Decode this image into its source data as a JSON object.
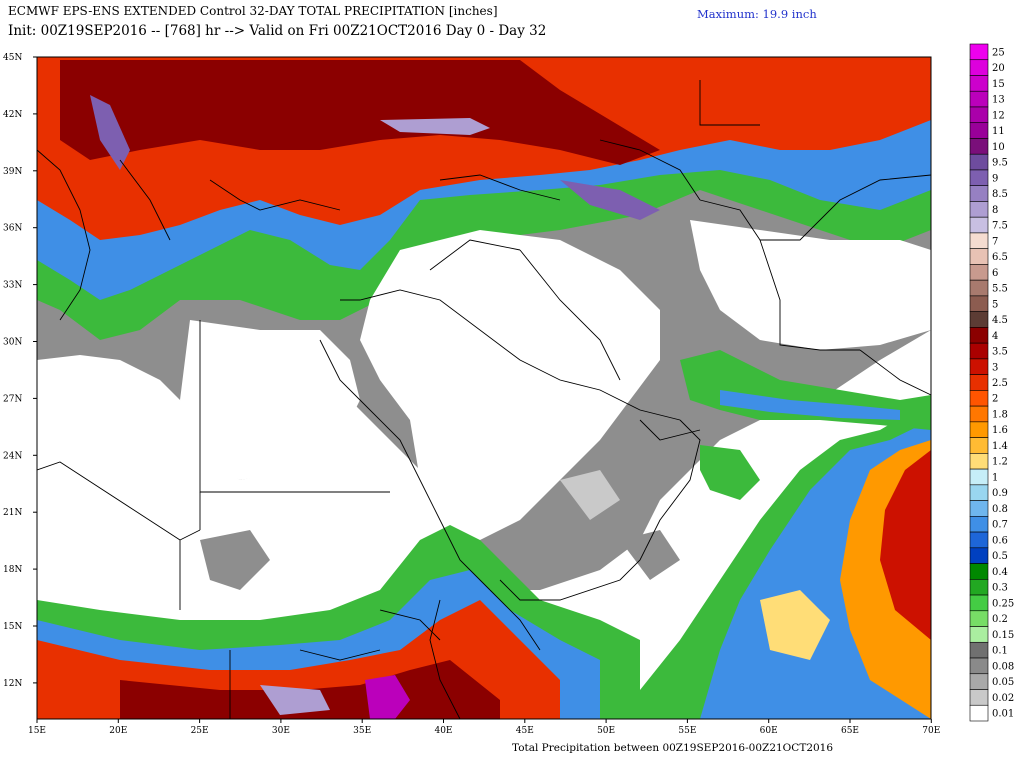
{
  "header": {
    "title_line1": "ECMWF EPS-ENS EXTENDED Control 32-DAY TOTAL PRECIPITATION [inches]",
    "title_line2": "Init: 00Z19SEP2016 -- [768] hr --> Valid on Fri 00Z21OCT2016  Day 0 - Day 32",
    "maximum": "Maximum: 19.9 inch"
  },
  "footer": {
    "text": "Total Precipitation between 00Z19SEP2016-00Z21OCT2016"
  },
  "axes": {
    "lat_labels": [
      "45N",
      "42N",
      "39N",
      "36N",
      "33N",
      "30N",
      "27N",
      "24N",
      "21N",
      "18N",
      "15N",
      "12N"
    ],
    "lon_labels": [
      "15E",
      "20E",
      "25E",
      "30E",
      "35E",
      "40E",
      "45E",
      "50E",
      "55E",
      "60E",
      "65E",
      "70E"
    ]
  },
  "colorbar": {
    "labels": [
      "25",
      "20",
      "15",
      "13",
      "12",
      "11",
      "10",
      "9.5",
      "9",
      "8.5",
      "8",
      "7.5",
      "7",
      "6.5",
      "6",
      "5.5",
      "5",
      "4.5",
      "4",
      "3.5",
      "3",
      "2.5",
      "2",
      "1.8",
      "1.6",
      "1.4",
      "1.2",
      "1",
      "0.9",
      "0.8",
      "0.7",
      "0.6",
      "0.5",
      "0.4",
      "0.3",
      "0.25",
      "0.2",
      "0.15",
      "0.1",
      "0.08",
      "0.05",
      "0.02",
      "0.01"
    ],
    "colors": [
      "#ee00ee",
      "#dd00dd",
      "#cc00cc",
      "#bb00bb",
      "#aa00aa",
      "#990099",
      "#7a0f7a",
      "#6e4c9e",
      "#7d5fb0",
      "#9680c2",
      "#ae9ed2",
      "#c8bfe2",
      "#f5dcd0",
      "#e8c2b4",
      "#c89a8e",
      "#a87a6e",
      "#8c5c50",
      "#5c3c34",
      "#8b0000",
      "#aa0000",
      "#cc1100",
      "#e83000",
      "#ff5500",
      "#ff7700",
      "#ff9900",
      "#ffbb33",
      "#ffdd77",
      "#c6eef8",
      "#99d6f0",
      "#6fb6ee",
      "#3f8fe6",
      "#1e66d8",
      "#0040c0",
      "#008800",
      "#22a822",
      "#44cc44",
      "#77dd66",
      "#aaeea0",
      "#707070",
      "#8a8a8a",
      "#a9a9a9",
      "#c9c9c9",
      "#ffffff"
    ]
  },
  "map_colors": {
    "land": "#ffffff",
    "trace": "#8e8e8e",
    "light_rain": "#3cba3c",
    "moderate": "#3f8fe6",
    "heavy": "#e83000",
    "very_heavy": "#8b0000",
    "extreme": "#7d5fb0",
    "borders": "#000000"
  }
}
